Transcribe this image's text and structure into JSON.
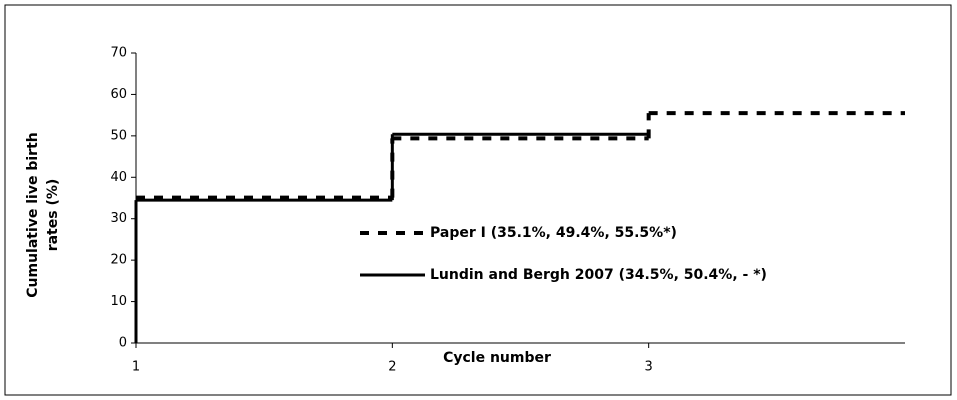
{
  "chart_data": {
    "type": "step",
    "xlabel": "Cycle number",
    "ylabel": "Cumulative live birth rates (%)",
    "x": [
      1,
      2,
      3
    ],
    "series": [
      {
        "name": "Paper I (35.1%, 49.4%, 55.5%*)",
        "color": "#000000",
        "dash": true,
        "rise_from_baseline": false,
        "values": [
          35.1,
          49.4,
          55.5
        ]
      },
      {
        "name": "Lundin and Bergh 2007 (34.5%, 50.4%, - *)",
        "color": "#000000",
        "dash": false,
        "rise_from_baseline": true,
        "values": [
          34.5,
          50.4,
          null
        ]
      }
    ],
    "xlim": [
      1,
      4
    ],
    "xticks": [
      1,
      2,
      3
    ],
    "ylim": [
      0,
      70
    ],
    "yticks": [
      0,
      10,
      20,
      30,
      40,
      50,
      60,
      70
    ],
    "grid": false
  }
}
